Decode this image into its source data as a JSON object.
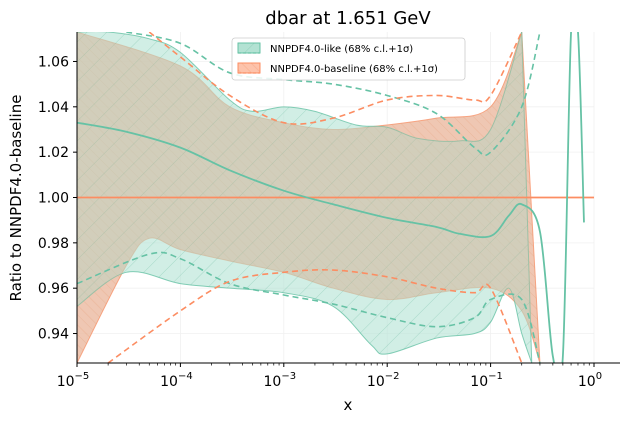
{
  "chart_data": {
    "type": "area",
    "title": "dbar at 1.651 GeV",
    "xlabel": "x",
    "ylabel": "Ratio to NNPDF4.0-baseline",
    "xscale": "log",
    "xlim": [
      1e-05,
      1
    ],
    "ylim": [
      0.927,
      1.073
    ],
    "yticks": [
      0.94,
      0.96,
      0.98,
      1.0,
      1.02,
      1.04,
      1.06
    ],
    "ytick_labels": [
      "0.94",
      "0.96",
      "0.98",
      "1.00",
      "1.02",
      "1.04",
      "1.06"
    ],
    "xticks": [
      1e-05,
      0.0001,
      0.001,
      0.01,
      0.1,
      1
    ],
    "xtick_labels": [
      {
        "base": "10",
        "exp": "−5"
      },
      {
        "base": "10",
        "exp": "−4"
      },
      {
        "base": "10",
        "exp": "−3"
      },
      {
        "base": "10",
        "exp": "−2"
      },
      {
        "base": "10",
        "exp": "−1"
      },
      {
        "base": "10",
        "exp": "0"
      }
    ],
    "legend_position": "top-center",
    "colors": {
      "like": "#66c2a5",
      "like_fill": "#b3e2d3",
      "baseline": "#fc8d62",
      "baseline_fill": "#fdc3ab",
      "overlap_fill": "#d4b59c"
    },
    "series": [
      {
        "name": "NNPDF4.0-like (68% c.l.+1σ)",
        "central": [
          [
            1e-05,
            1.033
          ],
          [
            3e-05,
            1.029
          ],
          [
            0.0001,
            1.022
          ],
          [
            0.0003,
            1.012
          ],
          [
            0.001,
            1.003
          ],
          [
            0.003,
            0.997
          ],
          [
            0.01,
            0.991
          ],
          [
            0.03,
            0.987
          ],
          [
            0.05,
            0.984
          ],
          [
            0.1,
            0.983
          ],
          [
            0.15,
            0.992
          ],
          [
            0.2,
            0.997
          ],
          [
            0.3,
            0.985
          ],
          [
            0.4,
            0.93
          ],
          [
            0.5,
            0.93
          ],
          [
            0.6,
            1.073
          ],
          [
            0.7,
            1.073
          ],
          [
            0.8,
            0.989
          ]
        ],
        "band_upper": [
          [
            1e-05,
            1.073
          ],
          [
            2e-05,
            1.073
          ],
          [
            5e-05,
            1.07
          ],
          [
            0.0001,
            1.064
          ],
          [
            0.0003,
            1.043
          ],
          [
            0.0005,
            1.038
          ],
          [
            0.001,
            1.04
          ],
          [
            0.002,
            1.038
          ],
          [
            0.005,
            1.032
          ],
          [
            0.01,
            1.031
          ],
          [
            0.02,
            1.026
          ],
          [
            0.05,
            1.025
          ],
          [
            0.1,
            1.03
          ],
          [
            0.2,
            1.073
          ]
        ],
        "band_lower": [
          [
            1e-05,
            0.952
          ],
          [
            3e-05,
            0.967
          ],
          [
            0.0001,
            0.962
          ],
          [
            0.0003,
            0.96
          ],
          [
            0.001,
            0.958
          ],
          [
            0.003,
            0.952
          ],
          [
            0.007,
            0.935
          ],
          [
            0.01,
            0.931
          ],
          [
            0.03,
            0.938
          ],
          [
            0.07,
            0.94
          ],
          [
            0.1,
            0.945
          ],
          [
            0.15,
            0.96
          ],
          [
            0.2,
            0.94
          ],
          [
            0.25,
            0.927
          ]
        ],
        "dashed_upper": [
          [
            3e-05,
            1.073
          ],
          [
            0.0001,
            1.068
          ],
          [
            0.0003,
            1.055
          ],
          [
            0.001,
            1.052
          ],
          [
            0.003,
            1.05
          ],
          [
            0.01,
            1.045
          ],
          [
            0.03,
            1.037
          ],
          [
            0.07,
            1.022
          ],
          [
            0.1,
            1.02
          ],
          [
            0.2,
            1.04
          ],
          [
            0.3,
            1.073
          ]
        ],
        "dashed_lower": [
          [
            1e-05,
            0.962
          ],
          [
            5e-05,
            0.975
          ],
          [
            0.0001,
            0.973
          ],
          [
            0.0003,
            0.962
          ],
          [
            0.001,
            0.957
          ],
          [
            0.003,
            0.953
          ],
          [
            0.01,
            0.947
          ],
          [
            0.03,
            0.943
          ],
          [
            0.07,
            0.947
          ],
          [
            0.1,
            0.955
          ],
          [
            0.2,
            0.955
          ],
          [
            0.3,
            0.927
          ]
        ]
      },
      {
        "name": "NNPDF4.0-baseline (68% c.l.+1σ)",
        "central": [
          [
            1e-05,
            1.0
          ],
          [
            1,
            1.0
          ]
        ],
        "band_upper": [
          [
            1e-05,
            1.073
          ],
          [
            0.0001,
            1.058
          ],
          [
            0.0003,
            1.04
          ],
          [
            0.001,
            1.033
          ],
          [
            0.003,
            1.03
          ],
          [
            0.01,
            1.032
          ],
          [
            0.03,
            1.035
          ],
          [
            0.1,
            1.04
          ],
          [
            0.2,
            1.073
          ]
        ],
        "band_lower": [
          [
            1e-05,
            0.927
          ],
          [
            3e-05,
            0.97
          ],
          [
            5e-05,
            0.982
          ],
          [
            0.0001,
            0.977
          ],
          [
            0.0003,
            0.972
          ],
          [
            0.001,
            0.967
          ],
          [
            0.003,
            0.96
          ],
          [
            0.01,
            0.955
          ],
          [
            0.03,
            0.958
          ],
          [
            0.1,
            0.96
          ],
          [
            0.2,
            0.95
          ],
          [
            0.3,
            0.927
          ]
        ],
        "dashed_upper": [
          [
            5e-05,
            1.073
          ],
          [
            0.0001,
            1.062
          ],
          [
            0.0003,
            1.045
          ],
          [
            0.001,
            1.033
          ],
          [
            0.003,
            1.035
          ],
          [
            0.01,
            1.043
          ],
          [
            0.03,
            1.045
          ],
          [
            0.07,
            1.043
          ],
          [
            0.1,
            1.045
          ],
          [
            0.2,
            1.073
          ]
        ],
        "dashed_lower": [
          [
            2e-05,
            0.927
          ],
          [
            0.0001,
            0.95
          ],
          [
            0.0003,
            0.963
          ],
          [
            0.001,
            0.967
          ],
          [
            0.003,
            0.968
          ],
          [
            0.01,
            0.965
          ],
          [
            0.03,
            0.96
          ],
          [
            0.07,
            0.958
          ],
          [
            0.1,
            0.96
          ],
          [
            0.2,
            0.927
          ]
        ]
      }
    ]
  }
}
